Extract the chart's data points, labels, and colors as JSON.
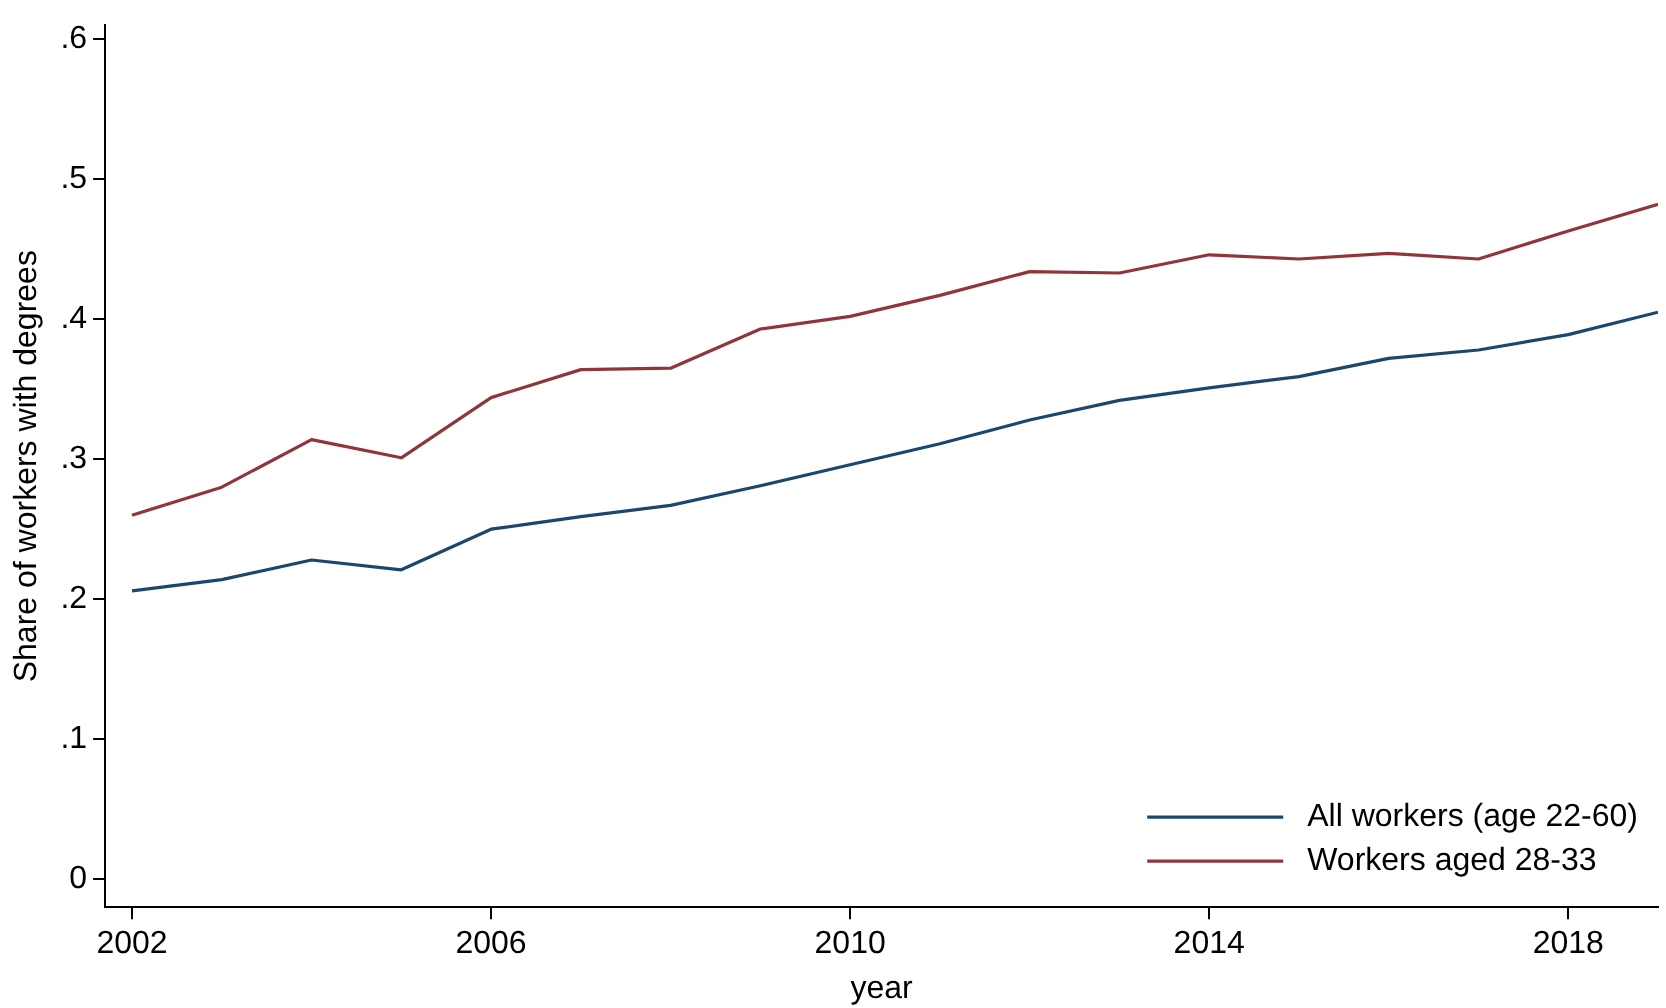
{
  "chart_data": {
    "type": "line",
    "xlabel": "year",
    "ylabel": "Share of workers with degrees",
    "x": [
      2002,
      2003,
      2004,
      2005,
      2006,
      2007,
      2008,
      2009,
      2010,
      2011,
      2012,
      2013,
      2014,
      2015,
      2016,
      2017,
      2018,
      2019
    ],
    "series": [
      {
        "name": "All workers (age 22-60)",
        "color": "#1a476f",
        "values": [
          0.206,
          0.214,
          0.228,
          0.221,
          0.25,
          0.259,
          0.267,
          0.281,
          0.296,
          0.311,
          0.328,
          0.342,
          0.351,
          0.359,
          0.372,
          0.378,
          0.389,
          0.405
        ]
      },
      {
        "name": "Workers aged 28-33",
        "color": "#90353b",
        "values": [
          0.26,
          0.28,
          0.314,
          0.301,
          0.344,
          0.364,
          0.365,
          0.393,
          0.402,
          0.417,
          0.434,
          0.433,
          0.446,
          0.443,
          0.447,
          0.443,
          0.463,
          0.482
        ]
      }
    ],
    "xlim": [
      2001.7,
      2019
    ],
    "xticks": [
      2002,
      2006,
      2010,
      2014,
      2018
    ],
    "ylim": [
      -0.02,
      0.61
    ],
    "yticks": [
      0,
      {
        "value": 0.1,
        "label": ".1"
      },
      {
        "value": 0.2,
        "label": ".2"
      },
      {
        "value": 0.3,
        "label": ".3"
      },
      {
        "value": 0.4,
        "label": ".4"
      },
      {
        "value": 0.5,
        "label": ".5"
      },
      {
        "value": 0.6,
        "label": ".6"
      }
    ],
    "grid": false,
    "legend": "bottom right",
    "marker": "none",
    "line_style": "solid"
  }
}
